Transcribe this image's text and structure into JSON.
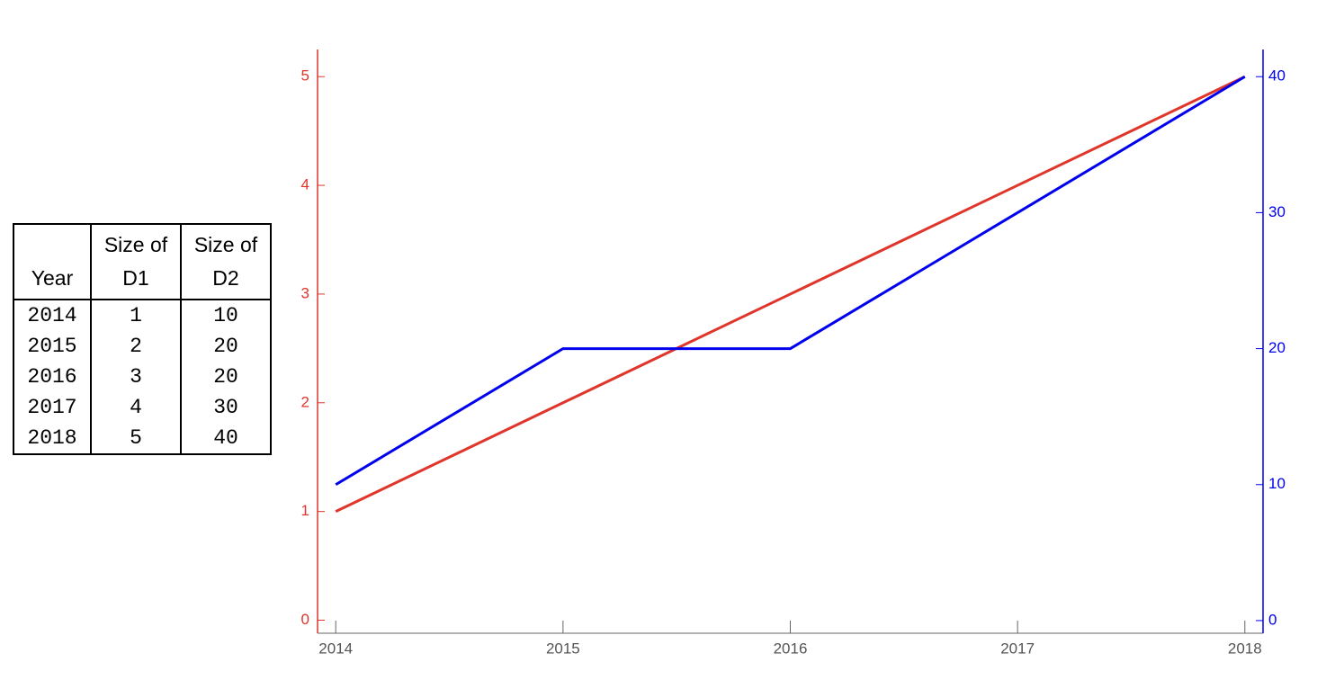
{
  "table": {
    "header": [
      "Year",
      "Size of D1",
      "Size of D2"
    ],
    "rows": [
      [
        2014,
        1,
        10
      ],
      [
        2015,
        2,
        20
      ],
      [
        2016,
        3,
        20
      ],
      [
        2017,
        4,
        30
      ],
      [
        2018,
        5,
        40
      ]
    ]
  },
  "chart_data": {
    "type": "line",
    "x": [
      2014,
      2015,
      2016,
      2017,
      2018
    ],
    "series": [
      {
        "color": "#e0352b",
        "values": [
          1,
          2,
          3,
          4,
          5
        ]
      },
      {
        "color": "#0000ee",
        "values": [
          10,
          20,
          20,
          30,
          40
        ],
        "axis": "y2"
      }
    ],
    "xlim": [
      2013.92,
      2018.08
    ],
    "xticks": [
      2014,
      2015,
      2016,
      2017,
      2018
    ],
    "ylim": [
      -0.12,
      5.25
    ],
    "yticks": [
      0,
      1,
      2,
      3,
      4,
      5
    ],
    "y2lim": [
      -0.93,
      42
    ],
    "y2ticks": [
      0,
      10,
      20,
      30,
      40
    ]
  }
}
